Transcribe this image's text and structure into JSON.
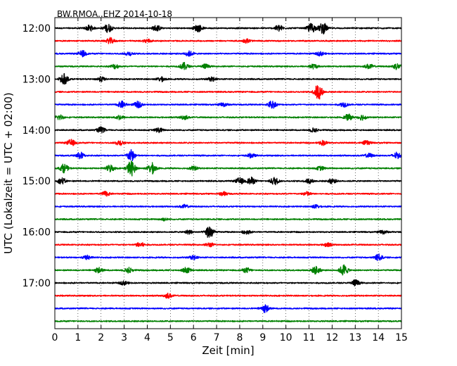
{
  "chart_data": {
    "type": "line",
    "title": "BW.RMOA..EHZ 2014-10-18",
    "xlabel": "Zeit  [min]",
    "ylabel": "UTC (Lokalzeit = UTC + 02:00)",
    "xlim": [
      0,
      15
    ],
    "x_ticks": [
      "0",
      "1",
      "2",
      "3",
      "4",
      "5",
      "6",
      "7",
      "8",
      "9",
      "10",
      "11",
      "12",
      "13",
      "14",
      "15"
    ],
    "x_grid": true,
    "y_ticks": [
      {
        "label": "12:00",
        "trace_index": 0
      },
      {
        "label": "13:00",
        "trace_index": 4
      },
      {
        "label": "14:00",
        "trace_index": 8
      },
      {
        "label": "15:00",
        "trace_index": 12
      },
      {
        "label": "16:00",
        "trace_index": 16
      },
      {
        "label": "17:00",
        "trace_index": 20
      }
    ],
    "trace_interval_min": 15,
    "color_cycle": [
      "#000000",
      "#ff0000",
      "#0000ff",
      "#008000"
    ],
    "series": [
      {
        "start": "12:00",
        "events": [
          [
            1.5,
            0.45
          ],
          [
            2.3,
            0.65
          ],
          [
            4.4,
            0.45
          ],
          [
            6.2,
            0.55
          ],
          [
            9.7,
            0.5
          ],
          [
            11.1,
            0.75
          ],
          [
            11.6,
            0.85
          ]
        ]
      },
      {
        "start": "12:15",
        "events": [
          [
            2.4,
            0.45
          ],
          [
            4.0,
            0.3
          ],
          [
            8.3,
            0.3
          ]
        ]
      },
      {
        "start": "12:30",
        "events": [
          [
            1.2,
            0.45
          ],
          [
            3.2,
            0.3
          ],
          [
            5.8,
            0.4
          ],
          [
            11.5,
            0.3
          ]
        ]
      },
      {
        "start": "12:45",
        "events": [
          [
            2.6,
            0.35
          ],
          [
            5.6,
            0.55
          ],
          [
            6.5,
            0.35
          ],
          [
            11.2,
            0.35
          ],
          [
            13.6,
            0.35
          ],
          [
            14.8,
            0.45
          ]
        ]
      },
      {
        "start": "13:00",
        "events": [
          [
            0.4,
            0.8
          ],
          [
            2.0,
            0.35
          ],
          [
            4.6,
            0.35
          ],
          [
            6.8,
            0.3
          ]
        ]
      },
      {
        "start": "13:15",
        "events": [
          [
            11.4,
            1.2
          ]
        ]
      },
      {
        "start": "13:30",
        "events": [
          [
            2.9,
            0.5
          ],
          [
            3.6,
            0.45
          ],
          [
            7.3,
            0.3
          ],
          [
            9.4,
            0.6
          ],
          [
            12.5,
            0.35
          ]
        ]
      },
      {
        "start": "13:45",
        "events": [
          [
            0.2,
            0.4
          ],
          [
            2.8,
            0.35
          ],
          [
            5.6,
            0.3
          ],
          [
            12.7,
            0.45
          ],
          [
            13.3,
            0.4
          ]
        ]
      },
      {
        "start": "14:00",
        "events": [
          [
            2.0,
            0.45
          ],
          [
            4.5,
            0.35
          ],
          [
            11.2,
            0.3
          ]
        ]
      },
      {
        "start": "14:15",
        "events": [
          [
            0.7,
            0.5
          ],
          [
            2.8,
            0.4
          ],
          [
            11.6,
            0.35
          ],
          [
            13.5,
            0.3
          ]
        ]
      },
      {
        "start": "14:30",
        "events": [
          [
            1.1,
            0.5
          ],
          [
            3.3,
            0.9
          ],
          [
            8.5,
            0.3
          ],
          [
            13.6,
            0.3
          ],
          [
            14.8,
            0.45
          ]
        ]
      },
      {
        "start": "14:45",
        "events": [
          [
            0.4,
            0.65
          ],
          [
            2.4,
            0.55
          ],
          [
            3.3,
            1.2
          ],
          [
            4.2,
            0.85
          ],
          [
            6.0,
            0.3
          ],
          [
            11.5,
            0.3
          ]
        ]
      },
      {
        "start": "15:00",
        "events": [
          [
            0.3,
            0.45
          ],
          [
            8.0,
            0.5
          ],
          [
            8.5,
            0.55
          ],
          [
            9.5,
            0.6
          ],
          [
            11.0,
            0.35
          ],
          [
            12.0,
            0.35
          ]
        ]
      },
      {
        "start": "15:15",
        "events": [
          [
            2.2,
            0.35
          ],
          [
            7.3,
            0.3
          ],
          [
            10.9,
            0.3
          ]
        ]
      },
      {
        "start": "15:30",
        "events": [
          [
            5.6,
            0.25
          ],
          [
            11.3,
            0.25
          ]
        ]
      },
      {
        "start": "15:45",
        "events": [
          [
            4.7,
            0.2
          ]
        ]
      },
      {
        "start": "16:00",
        "events": [
          [
            5.8,
            0.3
          ],
          [
            6.7,
            1.1
          ],
          [
            8.3,
            0.3
          ],
          [
            14.2,
            0.3
          ]
        ]
      },
      {
        "start": "16:15",
        "events": [
          [
            3.7,
            0.4
          ],
          [
            6.7,
            0.3
          ],
          [
            11.8,
            0.3
          ]
        ]
      },
      {
        "start": "16:30",
        "events": [
          [
            1.4,
            0.3
          ],
          [
            6.0,
            0.3
          ],
          [
            14.0,
            0.5
          ]
        ]
      },
      {
        "start": "16:45",
        "events": [
          [
            1.9,
            0.4
          ],
          [
            3.2,
            0.4
          ],
          [
            5.7,
            0.45
          ],
          [
            8.3,
            0.35
          ],
          [
            11.3,
            0.6
          ],
          [
            12.5,
            0.85
          ]
        ]
      },
      {
        "start": "17:00",
        "events": [
          [
            3.0,
            0.3
          ],
          [
            13.0,
            0.5
          ]
        ]
      },
      {
        "start": "17:15",
        "events": [
          [
            4.9,
            0.35
          ]
        ]
      },
      {
        "start": "17:30",
        "events": [
          [
            9.1,
            0.6
          ]
        ]
      },
      {
        "start": "17:45",
        "events": []
      }
    ]
  }
}
